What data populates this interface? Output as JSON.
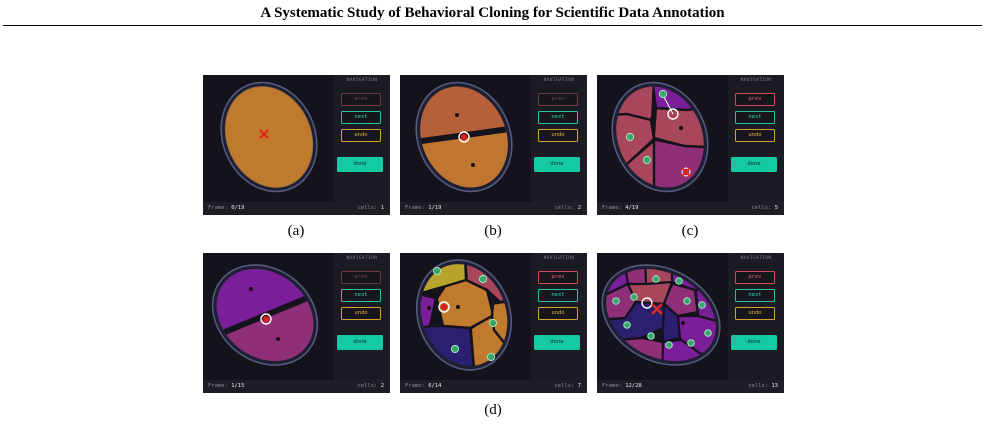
{
  "header": {
    "title": "A Systematic Study of Behavioral Cloning for Scientific Data Annotation"
  },
  "ui": {
    "nav_title": "NAVIGATION",
    "prev_label": "prev",
    "next_label": "next",
    "undo_label": "undo",
    "done_label": "done",
    "frame_prefix": "Frame:",
    "cells_prefix": "cells:"
  },
  "panels": [
    {
      "id": "a",
      "frame": "0/19",
      "cells": "1",
      "prev_enabled": false
    },
    {
      "id": "b",
      "frame": "1/19",
      "cells": "2",
      "prev_enabled": false
    },
    {
      "id": "c",
      "frame": "4/19",
      "cells": "5",
      "prev_enabled": true
    },
    {
      "id": "d1",
      "frame": "1/15",
      "cells": "2",
      "prev_enabled": false
    },
    {
      "id": "d2",
      "frame": "6/14",
      "cells": "7",
      "prev_enabled": true
    },
    {
      "id": "d3",
      "frame": "12/28",
      "cells": "13",
      "prev_enabled": true
    }
  ],
  "captions": {
    "a": "(a)",
    "b": "(b)",
    "c": "(c)",
    "d": "(d)"
  },
  "colors": {
    "orange": "#c07a2e",
    "terracotta": "#b66039",
    "rose": "#a8465b",
    "magenta": "#8e2f78",
    "purple": "#7a1e9a",
    "navy": "#2b2070",
    "olive": "#b8a42c",
    "accent_done": "#14c9a3"
  }
}
